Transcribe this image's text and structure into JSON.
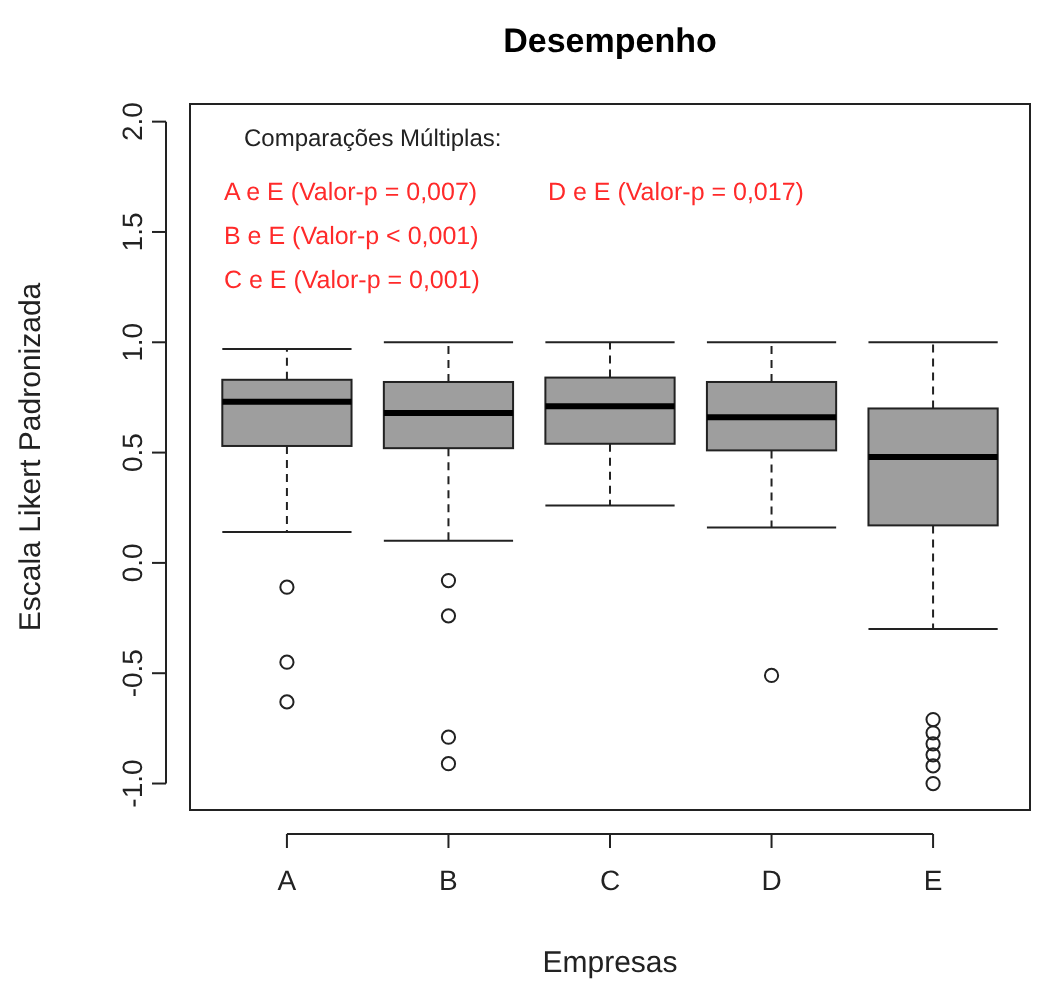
{
  "chart_data": {
    "type": "box",
    "title": "Desempenho",
    "xlabel": "Empresas",
    "ylabel": "Escala Likert Padronizada",
    "categories": [
      "A",
      "B",
      "C",
      "D",
      "E"
    ],
    "color": "#9e9e9e",
    "ylim": [
      -1.12,
      2.08
    ],
    "yticks": [
      {
        "value": -1,
        "label": "-1.0"
      },
      {
        "value": -0.5,
        "label": "-0.5"
      },
      {
        "value": 0,
        "label": "0.0"
      },
      {
        "value": 0.5,
        "label": "0.5"
      },
      {
        "value": 1,
        "label": "1.0"
      },
      {
        "value": 1.5,
        "label": "1.5"
      },
      {
        "value": 2,
        "label": "2.0"
      }
    ],
    "grid": false,
    "boxes": [
      {
        "low": 0.14,
        "q1": 0.53,
        "median": 0.73,
        "q3": 0.83,
        "high": 0.97,
        "outliers": [
          -0.11,
          -0.45,
          -0.63
        ]
      },
      {
        "low": 0.1,
        "q1": 0.52,
        "median": 0.68,
        "q3": 0.82,
        "high": 1.0,
        "outliers": [
          -0.08,
          -0.24,
          -0.79,
          -0.91
        ]
      },
      {
        "low": 0.26,
        "q1": 0.54,
        "median": 0.71,
        "q3": 0.84,
        "high": 1.0
      },
      {
        "low": 0.16,
        "q1": 0.51,
        "median": 0.66,
        "q3": 0.82,
        "high": 1.0,
        "outliers": [
          -0.51
        ]
      },
      {
        "low": -0.3,
        "q1": 0.17,
        "median": 0.48,
        "q3": 0.7,
        "high": 1.0,
        "outliers": [
          -0.71,
          -0.77,
          -0.82,
          -0.87,
          -0.92,
          -1.0
        ]
      }
    ],
    "annotations": [
      "Comparações Múltiplas:",
      "A e E (Valor-p = 0,007)",
      "B e E (Valor-p < 0,001)",
      "C e E (Valor-p = 0,001)",
      "D e E (Valor-p = 0,017)"
    ]
  }
}
